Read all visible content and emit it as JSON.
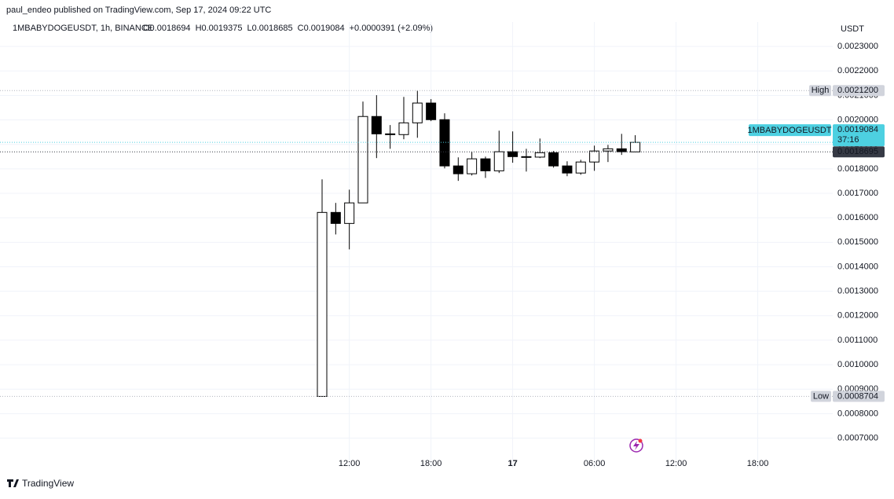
{
  "header": {
    "published": "paul_endeo published on TradingView.com, Sep 17, 2024 09:22 UTC",
    "symbol_info": "1MBABYDOGEUSDT, 1h, BINANCE",
    "ohlc_legend": [
      "O0.0018694",
      "H0.0019375",
      "L0.0018685",
      "C0.0019084",
      "+0.0000391 (+2.09%)"
    ]
  },
  "footer": {
    "brand": "TradingView"
  },
  "chart_data": {
    "type": "candlestick",
    "unit_label": "USDT",
    "categories": [
      null,
      null,
      "12:00",
      null,
      null,
      null,
      null,
      null,
      "18:00",
      null,
      null,
      null,
      null,
      null,
      "17",
      null,
      null,
      null,
      null,
      null,
      "06:00",
      null,
      null,
      null,
      null,
      null,
      "12:00",
      null,
      null,
      null,
      null,
      null,
      "18:00"
    ],
    "open": [
      0.0008704,
      0.001622,
      0.001577,
      0.001661,
      0.002014,
      0.001943,
      0.00194,
      0.001988,
      0.002069,
      0.002001,
      0.001812,
      0.00178,
      0.001841,
      0.001792,
      0.00187,
      0.00185,
      0.001848,
      0.001866,
      0.001812,
      0.001783,
      0.001828,
      0.001873,
      0.001882,
      0.0018694,
      null,
      null,
      null,
      null,
      null,
      null,
      null,
      null,
      null
    ],
    "high": [
      0.001757,
      0.001661,
      0.001715,
      0.002075,
      0.002101,
      0.001979,
      0.002094,
      0.00212,
      0.002085,
      0.002027,
      0.001847,
      0.00187,
      0.00185,
      0.001956,
      0.001953,
      0.001882,
      0.001924,
      0.001873,
      0.001831,
      0.001837,
      0.001895,
      0.001898,
      0.001943,
      0.0019375,
      null,
      null,
      null,
      null,
      null,
      null,
      null,
      null,
      null
    ],
    "low": [
      0.0008704,
      0.001532,
      0.001471,
      0.00166,
      0.001844,
      0.001882,
      0.001921,
      0.001927,
      0.001995,
      0.001802,
      0.001751,
      0.001773,
      0.001763,
      0.001783,
      0.001825,
      0.001789,
      0.001844,
      0.001805,
      0.00177,
      0.001776,
      0.001792,
      0.001828,
      0.001857,
      0.0018685,
      null,
      null,
      null,
      null,
      null,
      null,
      null,
      null,
      null
    ],
    "close": [
      0.001622,
      0.001577,
      0.001661,
      0.002014,
      0.001943,
      0.00194,
      0.001988,
      0.002069,
      0.002001,
      0.001812,
      0.00178,
      0.001841,
      0.001792,
      0.00187,
      0.00185,
      0.001848,
      0.001866,
      0.001812,
      0.001783,
      0.001828,
      0.001873,
      0.001882,
      0.00187,
      0.0019084,
      null,
      null,
      null,
      null,
      null,
      null,
      null,
      null,
      null
    ],
    "up_color": "#ffffff",
    "down_color": "#000000",
    "border_color": "#000000",
    "ylim": [
      0.00057,
      0.0024
    ],
    "yticks": [
      {
        "value": 0.0007,
        "label": "0.0007000"
      },
      {
        "value": 0.0008,
        "label": "0.0008000"
      },
      {
        "value": 0.0009,
        "label": "0.0009000"
      },
      {
        "value": 0.001,
        "label": "0.0010000"
      },
      {
        "value": 0.0011,
        "label": "0.0011000"
      },
      {
        "value": 0.0012,
        "label": "0.0012000"
      },
      {
        "value": 0.0013,
        "label": "0.0013000"
      },
      {
        "value": 0.0014,
        "label": "0.0014000"
      },
      {
        "value": 0.0015,
        "label": "0.0015000"
      },
      {
        "value": 0.0016,
        "label": "0.0016000"
      },
      {
        "value": 0.0017,
        "label": "0.0017000"
      },
      {
        "value": 0.0018,
        "label": "0.0018000"
      },
      {
        "value": 0.0019,
        "label": "0.0019000"
      },
      {
        "value": 0.002,
        "label": "0.0020000"
      },
      {
        "value": 0.0021,
        "label": "0.0021000"
      },
      {
        "value": 0.0022,
        "label": "0.0022000"
      },
      {
        "value": 0.0023,
        "label": "0.0023000"
      }
    ],
    "grid": true,
    "high_marker": {
      "label": "High",
      "value": 0.00212,
      "value_label": "0.0021200"
    },
    "low_marker": {
      "label": "Low",
      "value": 0.0008704,
      "value_label": "0.0008704"
    },
    "last_price": {
      "symbol": "1MBABYDOGEUSDT",
      "value": 0.0019084,
      "value_label": "0.0019084",
      "countdown": "37:16",
      "color": "#4dd0e1"
    },
    "ref_price": {
      "value": 0.0018695,
      "value_label": "0.0018695",
      "color": "#363a45"
    }
  }
}
